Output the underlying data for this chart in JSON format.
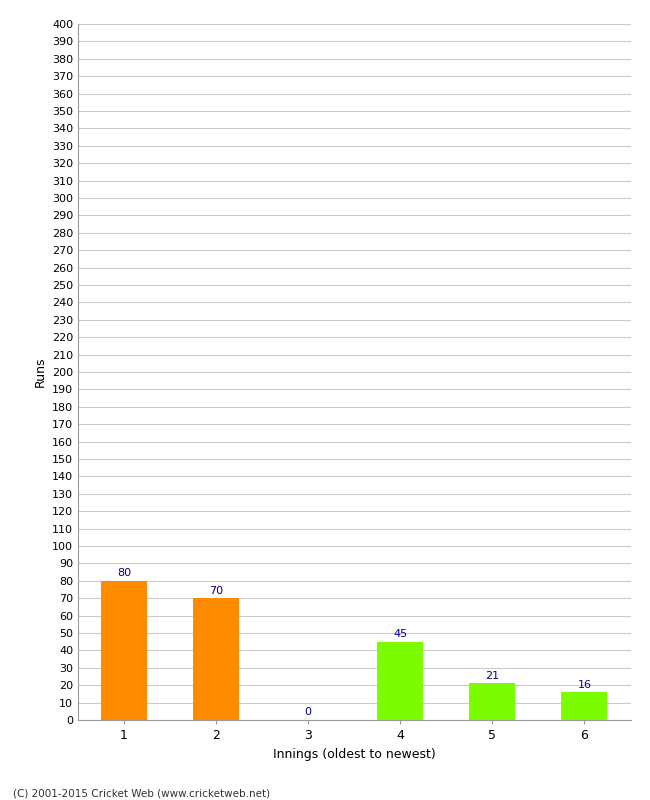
{
  "xlabel": "Innings (oldest to newest)",
  "ylabel": "Runs",
  "categories": [
    "1",
    "2",
    "3",
    "4",
    "5",
    "6"
  ],
  "values": [
    80,
    70,
    0,
    45,
    21,
    16
  ],
  "bar_colors": [
    "#ff8c00",
    "#ff8c00",
    "#7cfc00",
    "#7cfc00",
    "#7cfc00",
    "#7cfc00"
  ],
  "label_color": "#00008b",
  "ylim": [
    0,
    400
  ],
  "yticks": [
    0,
    10,
    20,
    30,
    40,
    50,
    60,
    70,
    80,
    90,
    100,
    110,
    120,
    130,
    140,
    150,
    160,
    170,
    180,
    190,
    200,
    210,
    220,
    230,
    240,
    250,
    260,
    270,
    280,
    290,
    300,
    310,
    320,
    330,
    340,
    350,
    360,
    370,
    380,
    390,
    400
  ],
  "footer": "(C) 2001-2015 Cricket Web (www.cricketweb.net)",
  "background_color": "#ffffff",
  "grid_color": "#cccccc",
  "bar_width": 0.5
}
